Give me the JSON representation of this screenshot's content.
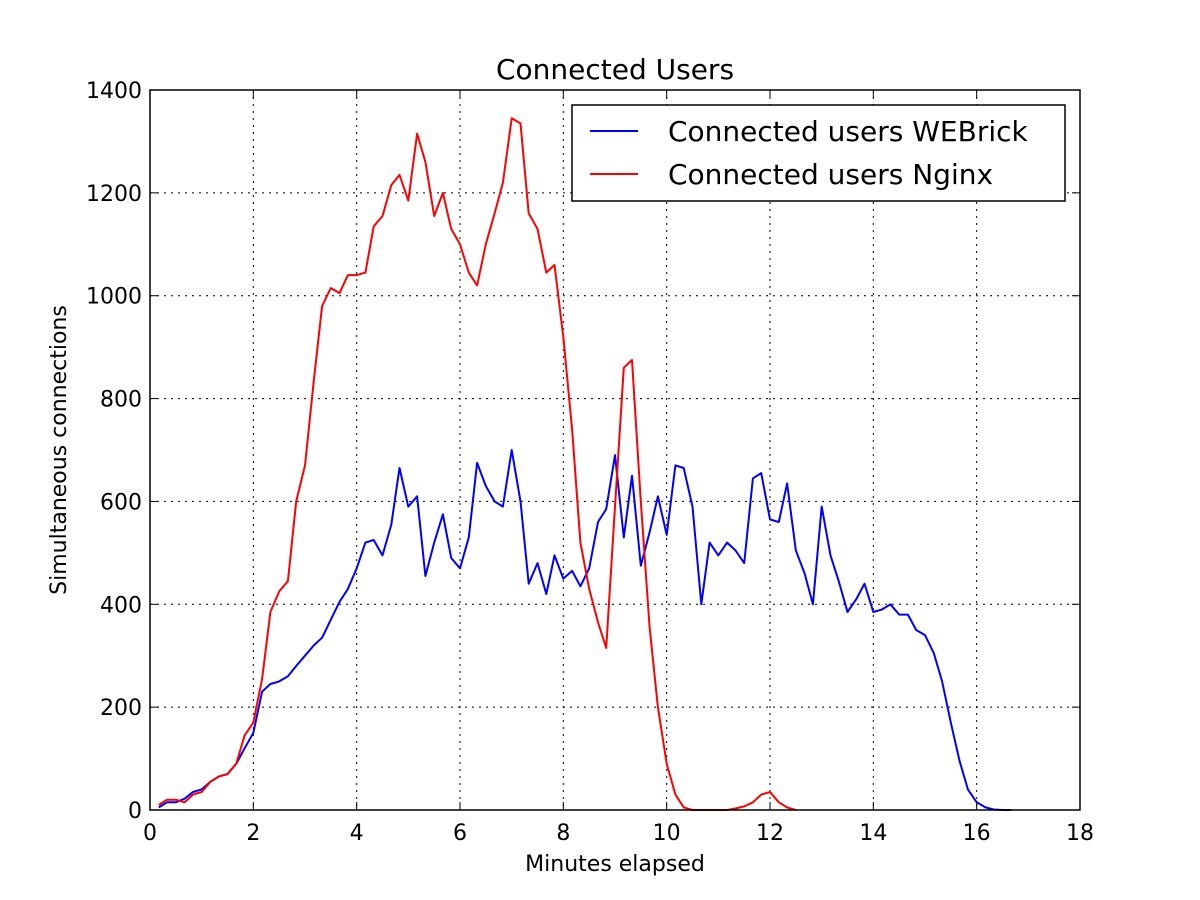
{
  "chart_data": {
    "type": "line",
    "title": "Connected Users",
    "xlabel": "Minutes elapsed",
    "ylabel": "Simultaneous connections",
    "xlim": [
      0,
      18
    ],
    "ylim": [
      0,
      1400
    ],
    "xticks": [
      "0",
      "2",
      "4",
      "6",
      "8",
      "10",
      "12",
      "14",
      "16",
      "18"
    ],
    "yticks": [
      "0",
      "200",
      "400",
      "600",
      "800",
      "1000",
      "1200",
      "1400"
    ],
    "grid": true,
    "legend_position": "top-right",
    "series": [
      {
        "name": "Connected users WEBrick",
        "color": "#0000ff",
        "x": [
          0.17,
          0.33,
          0.5,
          0.67,
          0.83,
          1.0,
          1.17,
          1.33,
          1.5,
          1.67,
          1.83,
          2.0,
          2.17,
          2.33,
          2.5,
          2.67,
          2.83,
          3.0,
          3.17,
          3.33,
          3.5,
          3.67,
          3.83,
          4.0,
          4.17,
          4.33,
          4.5,
          4.67,
          4.83,
          5.0,
          5.17,
          5.33,
          5.5,
          5.67,
          5.83,
          6.0,
          6.17,
          6.33,
          6.5,
          6.67,
          6.83,
          7.0,
          7.17,
          7.33,
          7.5,
          7.67,
          7.83,
          8.0,
          8.17,
          8.33,
          8.5,
          8.67,
          8.83,
          9.0,
          9.17,
          9.33,
          9.5,
          9.67,
          9.83,
          10.0,
          10.17,
          10.33,
          10.5,
          10.67,
          10.83,
          11.0,
          11.17,
          11.33,
          11.5,
          11.67,
          11.83,
          12.0,
          12.17,
          12.33,
          12.5,
          12.67,
          12.83,
          13.0,
          13.17,
          13.33,
          13.5,
          13.67,
          13.83,
          14.0,
          14.17,
          14.33,
          14.5,
          14.67,
          14.83,
          15.0,
          15.17,
          15.33,
          15.5,
          15.67,
          15.83,
          16.0,
          16.17,
          16.33,
          16.5,
          16.67
        ],
        "y": [
          5,
          15,
          15,
          22,
          35,
          40,
          55,
          65,
          70,
          90,
          120,
          150,
          230,
          245,
          250,
          260,
          280,
          300,
          320,
          335,
          370,
          405,
          430,
          470,
          520,
          525,
          495,
          555,
          665,
          590,
          610,
          455,
          520,
          575,
          490,
          470,
          530,
          675,
          630,
          600,
          590,
          700,
          600,
          440,
          480,
          420,
          495,
          450,
          465,
          435,
          470,
          560,
          585,
          690,
          530,
          650,
          475,
          540,
          610,
          535,
          670,
          665,
          590,
          400,
          520,
          495,
          520,
          505,
          480,
          645,
          655,
          565,
          560,
          635,
          505,
          460,
          400,
          590,
          495,
          445,
          385,
          410,
          440,
          385,
          390,
          400,
          380,
          380,
          350,
          340,
          305,
          250,
          170,
          95,
          40,
          15,
          5,
          1,
          0,
          0
        ]
      },
      {
        "name": "Connected users Nginx",
        "color": "#ff0000",
        "x": [
          0.17,
          0.33,
          0.5,
          0.67,
          0.83,
          1.0,
          1.17,
          1.33,
          1.5,
          1.67,
          1.83,
          2.0,
          2.17,
          2.33,
          2.5,
          2.67,
          2.83,
          3.0,
          3.17,
          3.33,
          3.5,
          3.67,
          3.83,
          4.0,
          4.17,
          4.33,
          4.5,
          4.67,
          4.83,
          5.0,
          5.17,
          5.33,
          5.5,
          5.67,
          5.83,
          6.0,
          6.17,
          6.33,
          6.5,
          6.67,
          6.83,
          7.0,
          7.17,
          7.33,
          7.5,
          7.67,
          7.83,
          8.0,
          8.17,
          8.33,
          8.5,
          8.67,
          8.83,
          9.0,
          9.17,
          9.33,
          9.5,
          9.67,
          9.83,
          10.0,
          10.17,
          10.33,
          10.5,
          10.67,
          10.83,
          11.0,
          11.17,
          11.33,
          11.5,
          11.67,
          11.83,
          12.0,
          12.17,
          12.33,
          12.5
        ],
        "y": [
          10,
          20,
          20,
          15,
          30,
          35,
          55,
          65,
          70,
          90,
          145,
          170,
          255,
          385,
          425,
          445,
          600,
          670,
          835,
          980,
          1015,
          1005,
          1040,
          1040,
          1045,
          1135,
          1155,
          1215,
          1235,
          1185,
          1315,
          1260,
          1155,
          1200,
          1130,
          1100,
          1045,
          1020,
          1100,
          1160,
          1220,
          1345,
          1335,
          1160,
          1130,
          1045,
          1060,
          920,
          740,
          520,
          430,
          365,
          315,
          590,
          860,
          875,
          600,
          355,
          200,
          90,
          30,
          5,
          0,
          0,
          0,
          0,
          0,
          3,
          7,
          15,
          30,
          35,
          15,
          5,
          0
        ]
      }
    ]
  }
}
